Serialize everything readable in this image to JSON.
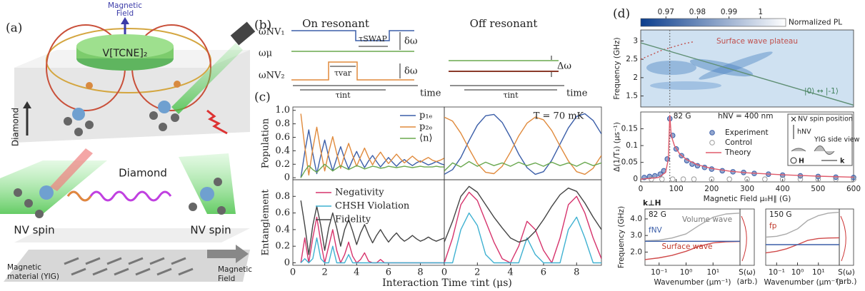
{
  "panel_labels": [
    "(a)",
    "(b)",
    "(c)",
    "(d)"
  ],
  "panel_a": {
    "field_top": [
      "Magnetic",
      "Field"
    ],
    "molecule": "V[TCNE]₂",
    "diamond_side": "Diamond",
    "diamond": "Diamond",
    "nv_left": "NV spin",
    "nv_right": "NV spin",
    "material": [
      "Magnetic",
      "material (YIG)"
    ],
    "field_bottom": [
      "Magnetic",
      "Field"
    ]
  },
  "panel_b": {
    "on": "On resonant",
    "off": "Off resonant",
    "levels": [
      "ωNV₁",
      "ωμ",
      "ωNV₂"
    ],
    "tau_swap": "τSWAP",
    "delta_top": "δω",
    "delta_bottom": "δω",
    "tau_var": "τvar",
    "tau_int": [
      "τint",
      "τint"
    ],
    "time": [
      "time",
      "time"
    ],
    "detuning": "Δω"
  },
  "panel_c": {
    "xlabel": "Interaction Time τint (μs)"
  },
  "panel_d": {
    "k_perp": "k⊥H",
    "inset": [
      "NV spin position",
      "hNV",
      "YIG side view",
      "H",
      "k"
    ]
  },
  "chart_data": [
    {
      "type": "line",
      "ylabel": "Population",
      "xlim": [
        0,
        9.5
      ],
      "ylim": [
        -0.03,
        1.05
      ],
      "yticks": [
        0,
        0.2,
        0.4,
        0.6,
        0.8,
        {
          "value": 1,
          "label": "1.0"
        }
      ],
      "x": [
        0.5,
        0.75,
        1,
        1.25,
        1.5,
        1.75,
        2,
        2.25,
        2.5,
        2.75,
        3,
        3.25,
        3.5,
        3.75,
        4,
        4.25,
        4.5,
        4.75,
        5,
        5.25,
        5.5,
        5.75,
        6,
        6.25,
        6.5,
        6.75,
        7,
        7.25,
        7.5,
        7.75,
        8,
        8.25,
        8.5,
        8.75,
        9,
        9.25,
        9.5
      ],
      "series": [
        {
          "name": "p₁ₑ",
          "color": "#3b5ea8",
          "values": [
            0,
            0.38,
            0.71,
            0.36,
            0.06,
            0.33,
            0.56,
            0.31,
            0.1,
            0.29,
            0.46,
            0.28,
            0.13,
            0.27,
            0.39,
            0.26,
            0.15,
            0.25,
            0.33,
            0.24,
            0.16,
            0.23,
            0.3,
            0.23,
            0.17,
            0.23,
            0.27,
            0.22,
            0.18,
            0.22,
            0.25,
            0.22,
            0.19,
            0.21,
            0.24,
            0.21,
            0.19
          ]
        },
        {
          "name": "p₂ₑ",
          "color": "#e08a3c",
          "values": [
            0.95,
            0.46,
            0.04,
            0.43,
            0.75,
            0.4,
            0.1,
            0.38,
            0.61,
            0.36,
            0.14,
            0.34,
            0.51,
            0.33,
            0.17,
            0.31,
            0.44,
            0.3,
            0.19,
            0.3,
            0.38,
            0.29,
            0.21,
            0.28,
            0.35,
            0.28,
            0.22,
            0.27,
            0.32,
            0.27,
            0.23,
            0.27,
            0.3,
            0.26,
            0.24,
            0.26,
            0.29
          ]
        },
        {
          "name": "⟨n⟩",
          "color": "#6aa84f",
          "values": [
            0,
            0.1,
            0.18,
            0.12,
            0.08,
            0.14,
            0.2,
            0.15,
            0.1,
            0.14,
            0.18,
            0.15,
            0.12,
            0.15,
            0.18,
            0.16,
            0.13,
            0.15,
            0.17,
            0.16,
            0.14,
            0.15,
            0.17,
            0.16,
            0.15,
            0.16,
            0.17,
            0.16,
            0.15,
            0.16,
            0.17,
            0.16,
            0.16,
            0.16,
            0.17,
            0.16,
            0.16
          ]
        }
      ]
    },
    {
      "type": "line",
      "xlim": [
        0,
        9.5
      ],
      "ylim": [
        -0.03,
        1.05
      ],
      "annotations": [
        "T = 70 mK"
      ],
      "x": [
        0,
        0.5,
        1,
        1.5,
        2,
        2.5,
        3,
        3.5,
        4,
        4.5,
        5,
        5.5,
        6,
        6.5,
        7,
        7.5,
        8,
        8.5,
        9,
        9.5
      ],
      "series": [
        {
          "color": "#3b5ea8",
          "values": [
            0.05,
            0.12,
            0.3,
            0.55,
            0.78,
            0.92,
            0.94,
            0.82,
            0.6,
            0.35,
            0.15,
            0.05,
            0.09,
            0.26,
            0.5,
            0.74,
            0.91,
            0.95,
            0.85,
            0.65
          ]
        },
        {
          "color": "#e08a3c",
          "values": [
            0.9,
            0.84,
            0.66,
            0.43,
            0.21,
            0.08,
            0.06,
            0.17,
            0.38,
            0.62,
            0.81,
            0.9,
            0.86,
            0.7,
            0.47,
            0.25,
            0.09,
            0.05,
            0.14,
            0.33
          ]
        },
        {
          "color": "#6aa84f",
          "values": [
            0.1,
            0.22,
            0.16,
            0.24,
            0.17,
            0.23,
            0.18,
            0.22,
            0.17,
            0.23,
            0.18,
            0.22,
            0.17,
            0.23,
            0.18,
            0.22,
            0.17,
            0.23,
            0.18,
            0.22
          ]
        }
      ]
    },
    {
      "type": "line",
      "ylabel": "Entanglement",
      "xlim": [
        0,
        9.5
      ],
      "ylim": [
        -0.03,
        1.0
      ],
      "yticks": [
        0,
        0.2,
        0.4,
        0.6,
        0.8
      ],
      "xticks": [
        0,
        2,
        4,
        6,
        8
      ],
      "x": [
        0.5,
        0.75,
        1,
        1.25,
        1.5,
        1.75,
        2,
        2.25,
        2.5,
        2.75,
        3,
        3.25,
        3.5,
        3.75,
        4,
        4.25,
        4.5,
        4.75,
        5,
        5.25,
        5.5,
        5.75,
        6,
        6.25,
        6.5,
        6.75,
        7,
        7.25,
        7.5,
        7.75,
        8,
        8.25,
        8.5,
        8.75,
        9,
        9.25,
        9.5
      ],
      "series": [
        {
          "name": "Negativity",
          "color": "#d6336c",
          "values": [
            0,
            0.3,
            0,
            0.3,
            0.55,
            0.25,
            0,
            0.2,
            0.4,
            0.15,
            0,
            0.1,
            0.25,
            0.08,
            0,
            0.04,
            0.12,
            0.02,
            0,
            0,
            0.04,
            0,
            0,
            0,
            0,
            0,
            0,
            0,
            0,
            0,
            0,
            0,
            0,
            0,
            0,
            0,
            0
          ]
        },
        {
          "name": "CHSH Violation",
          "color": "#3fb1d1",
          "values": [
            0,
            0.05,
            0,
            0.05,
            0.3,
            0.05,
            0,
            0,
            0.2,
            0,
            0,
            0,
            0.1,
            0,
            0,
            0,
            0,
            0,
            0,
            0,
            0,
            0,
            0,
            0,
            0,
            0,
            0,
            0,
            0,
            0,
            0,
            0,
            0,
            0,
            0,
            0,
            0
          ]
        },
        {
          "name": "Fidelity",
          "color": "#444444",
          "values": [
            0.75,
            0.45,
            0.1,
            0.45,
            0.68,
            0.45,
            0.15,
            0.42,
            0.6,
            0.42,
            0.2,
            0.4,
            0.52,
            0.38,
            0.22,
            0.36,
            0.46,
            0.34,
            0.24,
            0.33,
            0.4,
            0.32,
            0.25,
            0.31,
            0.36,
            0.3,
            0.26,
            0.29,
            0.33,
            0.29,
            0.26,
            0.28,
            0.31,
            0.28,
            0.26,
            0.28,
            0.3
          ]
        }
      ]
    },
    {
      "type": "line",
      "xlim": [
        0,
        9.5
      ],
      "ylim": [
        -0.03,
        1.0
      ],
      "xticks": [
        0,
        2,
        4,
        6,
        8
      ],
      "x": [
        0,
        0.5,
        1,
        1.5,
        2,
        2.5,
        3,
        3.5,
        4,
        4.5,
        5,
        5.5,
        6,
        6.5,
        7,
        7.5,
        8,
        8.5,
        9,
        9.5
      ],
      "series": [
        {
          "color": "#d6336c",
          "values": [
            0,
            0.3,
            0.7,
            0.85,
            0.75,
            0.5,
            0.25,
            0.05,
            0,
            0.2,
            0.5,
            0.4,
            0.15,
            0,
            0.3,
            0.7,
            0.8,
            0.6,
            0.3,
            0.05
          ]
        },
        {
          "color": "#3fb1d1",
          "values": [
            0,
            0,
            0.4,
            0.6,
            0.45,
            0.1,
            0,
            0,
            0,
            0,
            0.3,
            0.1,
            0,
            0,
            0,
            0.4,
            0.55,
            0.3,
            0,
            0
          ]
        },
        {
          "color": "#444444",
          "values": [
            0.25,
            0.5,
            0.8,
            0.92,
            0.85,
            0.7,
            0.55,
            0.42,
            0.3,
            0.25,
            0.28,
            0.38,
            0.52,
            0.68,
            0.82,
            0.9,
            0.86,
            0.72,
            0.55,
            0.4
          ]
        }
      ]
    },
    {
      "type": "colorbar",
      "colors": [
        "#0b3d8c",
        "#ffffff"
      ],
      "xlim": [
        0.962,
        1.008
      ],
      "xticks": [
        0.97,
        0.98,
        0.99,
        1
      ],
      "label": "Normalized PL"
    },
    {
      "type": "heatmap",
      "ylabel": "Frequency (GHz)",
      "xlim": [
        0,
        600
      ],
      "ylim": [
        1.2,
        3.3
      ],
      "yticks": [
        1.5,
        2,
        2.5,
        3
      ],
      "vline": {
        "value": 82
      },
      "annotations": [
        "Surface wave plateau",
        "|0⟩ ↔ |-1⟩"
      ],
      "series": [
        {
          "color": "#c0504d",
          "style": "dotted",
          "x": [
            0,
            60,
            120,
            150
          ],
          "values": [
            2.5,
            2.75,
            2.92,
            2.98
          ]
        },
        {
          "color": "#5f8f74",
          "x": [
            0,
            600
          ],
          "values": [
            2.95,
            1.25
          ]
        }
      ]
    },
    {
      "type": "scatter",
      "ylabel": "Δ(1/T₁) (μs⁻¹)",
      "xlabel": "Magnetic Field μ₀H∥ (G)",
      "xlim": [
        0,
        600
      ],
      "ylim": [
        -0.008,
        0.2
      ],
      "xticks": [
        0,
        100,
        200,
        300,
        400,
        500,
        600
      ],
      "yticks": [
        0,
        0.05,
        0.1,
        0.15
      ],
      "vline": {
        "value": 82,
        "label": "82 G"
      },
      "annotations": [
        "hNV = 400 nm"
      ],
      "series": [
        {
          "name": "Experiment",
          "color": "#3b5ea8",
          "mode": "markers",
          "filled": true,
          "x": [
            10,
            25,
            40,
            55,
            65,
            75,
            82,
            90,
            100,
            115,
            130,
            145,
            160,
            180,
            200,
            230,
            260,
            290,
            320,
            360,
            400,
            450,
            500,
            550,
            600
          ],
          "values": [
            0.005,
            0.008,
            0.01,
            0.015,
            0.025,
            0.06,
            0.18,
            0.13,
            0.09,
            0.07,
            0.055,
            0.045,
            0.04,
            0.035,
            0.03,
            0.025,
            0.022,
            0.02,
            0.017,
            0.015,
            0.012,
            0.01,
            0.008,
            0.006,
            0.005
          ]
        },
        {
          "name": "Control",
          "color": "#999999",
          "mode": "markers",
          "filled": false,
          "x": [
            30,
            60,
            90,
            120,
            150,
            200,
            250,
            300,
            350,
            400,
            450,
            500,
            550,
            600
          ],
          "values": [
            0,
            0,
            0,
            0,
            0,
            0,
            0,
            0,
            0,
            0,
            0,
            0,
            0,
            0
          ]
        },
        {
          "name": "Theory",
          "color": "#e05a6a",
          "x": [
            0,
            50,
            70,
            78,
            82,
            86,
            95,
            110,
            130,
            160,
            200,
            250,
            300,
            400,
            500,
            600
          ],
          "values": [
            0,
            0.005,
            0.02,
            0.06,
            0.19,
            0.13,
            0.1,
            0.075,
            0.058,
            0.043,
            0.032,
            0.024,
            0.019,
            0.013,
            0.009,
            0.006
          ]
        }
      ]
    },
    {
      "type": "line",
      "xscale": "log",
      "ylabel": "Frequency (GHz)",
      "xlabel": "Wavenumber (μm⁻¹)",
      "side_label": [
        "S(ω)",
        "(arb.)"
      ],
      "xlim": [
        0.03,
        100
      ],
      "ylim": [
        1.2,
        4.6
      ],
      "xticks": [
        {
          "value": 0.1,
          "label": "10⁻¹"
        },
        {
          "value": 1,
          "label": "10⁰"
        },
        {
          "value": 10,
          "label": "10¹"
        }
      ],
      "yticks": [
        {
          "value": 2,
          "label": "2.0"
        },
        {
          "value": 3,
          "label": "3.0"
        },
        {
          "value": 4,
          "label": "4.0"
        }
      ],
      "annotations": [
        "82 G",
        "Volume wave",
        "Surface wave",
        "fNV"
      ],
      "x": [
        0.03,
        0.1,
        0.3,
        1,
        3,
        10,
        30,
        100
      ],
      "series": [
        {
          "color": "#d04a4a",
          "values": [
            1.55,
            1.65,
            1.8,
            2.05,
            2.35,
            2.55,
            2.62,
            2.64
          ]
        },
        {
          "color": "#aaaaaa",
          "values": [
            2.68,
            2.72,
            2.85,
            3.1,
            3.6,
            4.1,
            4.3,
            4.35
          ]
        },
        {
          "color": "#3b5ea8",
          "values": [
            2.65,
            2.65,
            2.65,
            2.65,
            2.65,
            2.65,
            2.65,
            2.65
          ]
        }
      ]
    },
    {
      "type": "line",
      "xscale": "log",
      "xlabel": "Wavenumber (μm⁻¹)",
      "side_label": [
        "S(ω)",
        "(arb.)"
      ],
      "xlim": [
        0.03,
        100
      ],
      "ylim": [
        1.2,
        4.6
      ],
      "xticks": [
        {
          "value": 0.1,
          "label": "10⁻¹"
        },
        {
          "value": 1,
          "label": "10⁰"
        },
        {
          "value": 10,
          "label": "10¹"
        }
      ],
      "annotations": [
        "150 G",
        "fp"
      ],
      "x": [
        0.03,
        0.1,
        0.3,
        1,
        3,
        10,
        30,
        100
      ],
      "series": [
        {
          "color": "#d04a4a",
          "values": [
            1.95,
            2.05,
            2.2,
            2.45,
            2.7,
            2.82,
            2.85,
            2.86
          ]
        },
        {
          "color": "#aaaaaa",
          "values": [
            2.9,
            2.95,
            3.1,
            3.4,
            3.9,
            4.2,
            4.35,
            4.4
          ]
        },
        {
          "color": "#3b5ea8",
          "values": [
            2.45,
            2.45,
            2.45,
            2.45,
            2.45,
            2.45,
            2.45,
            2.45
          ]
        }
      ]
    }
  ]
}
